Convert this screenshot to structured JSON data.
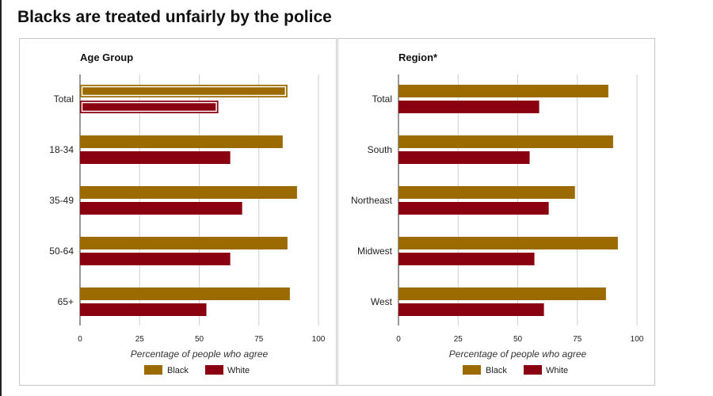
{
  "page": {
    "title": "Blacks are treated unfairly by the police"
  },
  "colors": {
    "black_series": "#9b6a00",
    "white_series": "#8b0010",
    "highlight_stroke": "#ffffff"
  },
  "chart_data": [
    {
      "type": "bar",
      "orientation": "horizontal",
      "title": "Age Group",
      "xlabel": "Percentage of people who agree",
      "xlim": [
        0,
        100
      ],
      "xticks": [
        0,
        25,
        50,
        75,
        100
      ],
      "grid": true,
      "legend_position": "bottom",
      "categories": [
        "Total",
        "18-34",
        "35-49",
        "50-64",
        "65+"
      ],
      "highlighted_category": "Total",
      "series": [
        {
          "name": "Black",
          "values": [
            87,
            85,
            91,
            87,
            88
          ]
        },
        {
          "name": "White",
          "values": [
            58,
            63,
            68,
            63,
            53
          ]
        }
      ]
    },
    {
      "type": "bar",
      "orientation": "horizontal",
      "title": "Region*",
      "xlabel": "Percentage of people who agree",
      "xlim": [
        0,
        100
      ],
      "xticks": [
        0,
        25,
        50,
        75,
        100
      ],
      "grid": true,
      "legend_position": "bottom",
      "categories": [
        "Total",
        "South",
        "Northeast",
        "Midwest",
        "West"
      ],
      "series": [
        {
          "name": "Black",
          "values": [
            88,
            90,
            74,
            92,
            87
          ]
        },
        {
          "name": "White",
          "values": [
            59,
            55,
            63,
            57,
            61
          ]
        }
      ]
    }
  ]
}
